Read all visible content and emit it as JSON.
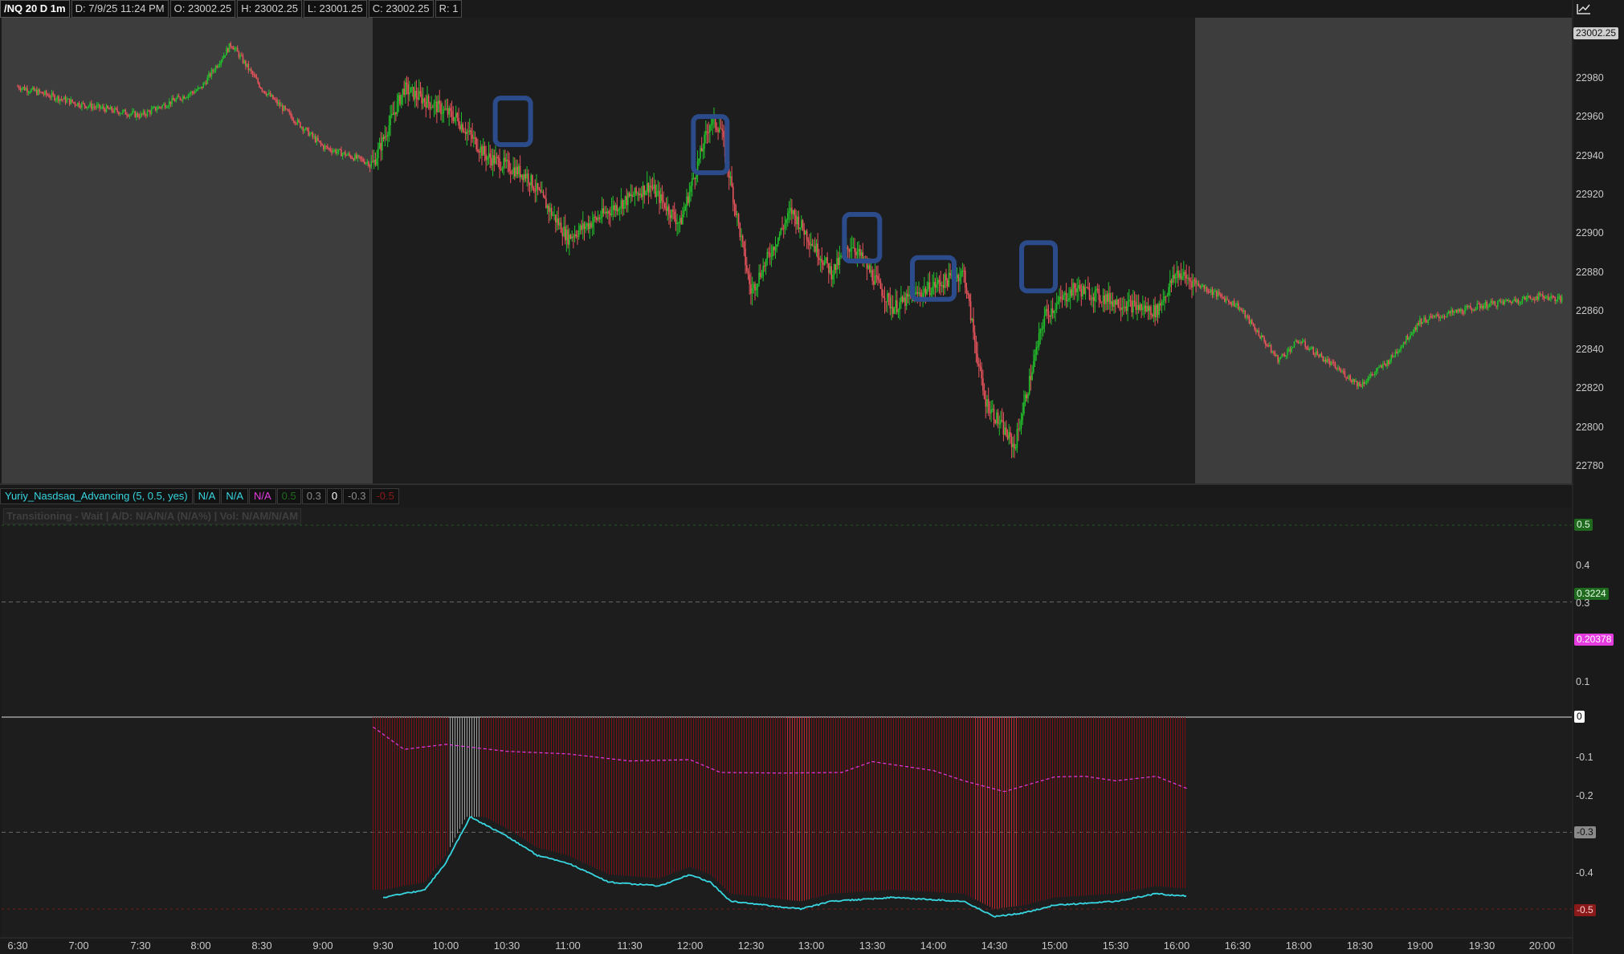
{
  "header": {
    "symbol": "/NQ 20 D 1m",
    "date": "D: 7/9/25 11:24 PM",
    "open": "O: 23002.25",
    "high": "H: 23002.25",
    "low": "L: 23001.25",
    "close": "C: 23002.25",
    "range": "R: 1"
  },
  "price_axis": {
    "last_price": "23002.25",
    "labels": [
      "22980",
      "22960",
      "22940",
      "22920",
      "22900",
      "22880",
      "22860",
      "22840",
      "22820",
      "22800",
      "22780"
    ]
  },
  "indicator": {
    "name": "Yuriy_Nasdsaq_Advancing (5, 0.5, yes)",
    "v1": "N/A",
    "v2": "N/A",
    "v3": "N/A",
    "lvl1": "0.5",
    "lvl2": "0.3",
    "lvl3": "0",
    "lvl4": "-0.3",
    "lvl5": "-0.5",
    "status_text": "Transitioning - Wait | A/D: N/A/N/A (N/A%) | Vol: N/AM/N/AM",
    "axis_labels": [
      "0.4",
      "0.3",
      "0.1",
      "-0.1",
      "-0.2",
      "-0.4"
    ],
    "tag_05": "0.5",
    "tag_03224": "0.3224",
    "tag_020378": "0.20378",
    "tag_0": "0",
    "tag_m03": "-0.3",
    "tag_m05": "-0.5"
  },
  "time_axis": [
    "6:30",
    "7:00",
    "7:30",
    "8:00",
    "8:30",
    "9:00",
    "9:30",
    "10:00",
    "10:30",
    "11:00",
    "11:30",
    "12:00",
    "12:30",
    "13:00",
    "13:30",
    "14:00",
    "14:30",
    "15:00",
    "15:30",
    "16:00",
    "16:30",
    "18:00",
    "18:30",
    "19:00",
    "19:30",
    "20:00"
  ],
  "colors": {
    "up": "#22c12c",
    "down": "#e8545c",
    "cyan": "#37d6e0",
    "magenta": "#e53ce0",
    "highlight": "#2b4b8a",
    "bar_red": "#7a0f16"
  },
  "chart_data": {
    "type": "line",
    "series": [
      {
        "x": [
          "6:30",
          "7:00",
          "7:30",
          "8:00",
          "8:15",
          "8:30",
          "9:00",
          "9:25",
          "9:40",
          "10:05",
          "10:20",
          "10:40",
          "11:00",
          "11:20",
          "11:40",
          "11:55",
          "12:10",
          "12:15",
          "12:30",
          "12:50",
          "13:10",
          "13:20",
          "13:40",
          "14:00",
          "14:15",
          "14:25",
          "14:40",
          "14:55",
          "15:10",
          "15:30",
          "15:50",
          "16:00",
          "16:30",
          "17:30",
          "18:00",
          "18:30",
          "18:45",
          "19:00",
          "19:30",
          "20:00",
          "20:10"
        ],
        "values": [
          22976,
          22967,
          22961,
          22975,
          22998,
          22975,
          22945,
          22936,
          22975,
          22960,
          22940,
          22930,
          22898,
          22912,
          22925,
          22905,
          22958,
          22955,
          22870,
          22912,
          22880,
          22895,
          22862,
          22873,
          22880,
          22815,
          22790,
          22858,
          22872,
          22865,
          22860,
          22880,
          22863,
          22835,
          22845,
          22822,
          22835,
          22855,
          22863,
          22868,
          22866
        ]
      }
    ],
    "ylim": [
      22770,
      23002.25
    ],
    "indicator_ylim": [
      -0.55,
      0.55
    ]
  }
}
